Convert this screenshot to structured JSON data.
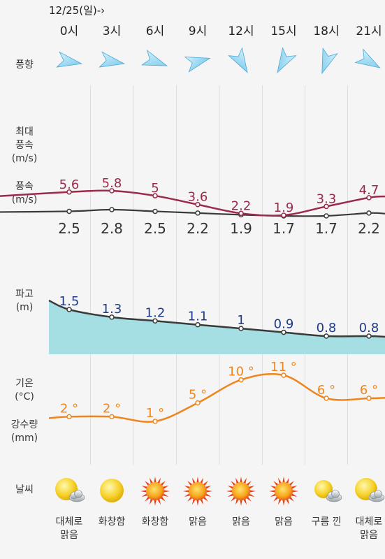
{
  "date_label": "12/25(일)-›",
  "hours": [
    "0시",
    "3시",
    "6시",
    "9시",
    "12시",
    "15시",
    "18시",
    "21시"
  ],
  "labels": {
    "wind_direction": "풍향",
    "max_wind": "최대\n풍속\n(m/s)",
    "wind_speed": "풍속\n(m/s)",
    "wave": "파고\n(m)",
    "temperature": "기온\n(°C)",
    "precipitation": "강수량\n(mm)",
    "weather": "날씨"
  },
  "wind_direction_deg": [
    100,
    100,
    110,
    75,
    150,
    210,
    200,
    120
  ],
  "max_wind": [
    "5.6",
    "5.8",
    "5",
    "3.6",
    "2.2",
    "1.9",
    "3.3",
    "4.7"
  ],
  "wind_speed": [
    "2.5",
    "2.8",
    "2.5",
    "2.2",
    "1.9",
    "1.7",
    "1.7",
    "2.2"
  ],
  "wave": [
    "1.5",
    "1.3",
    "1.2",
    "1.1",
    "1",
    "0.9",
    "0.8",
    "0.8"
  ],
  "temperature": [
    "2 °",
    "2 °",
    "1 °",
    "5 °",
    "10 °",
    "11 °",
    "6 °",
    "6 °"
  ],
  "weather": [
    {
      "icon": "sun-cloud-icon",
      "text": "대체로\n맑음"
    },
    {
      "icon": "sun-icon",
      "text": "화창함"
    },
    {
      "icon": "hot-sun-icon",
      "text": "화창함"
    },
    {
      "icon": "hot-sun-icon",
      "text": "맑음"
    },
    {
      "icon": "hot-sun-icon",
      "text": "맑음"
    },
    {
      "icon": "hot-sun-icon",
      "text": "맑음"
    },
    {
      "icon": "cloudy-sun-icon",
      "text": "구름 낀"
    },
    {
      "icon": "sun-cloud-icon",
      "text": "대체로\n맑음"
    }
  ],
  "colors": {
    "max_wind": "#9b2a4a",
    "wind": "#3a3a3a",
    "wave_fill": "#a6dfe3",
    "wave_text": "#1f3a8a",
    "temp": "#f0851e",
    "arrow": "#6cc4ea"
  }
}
